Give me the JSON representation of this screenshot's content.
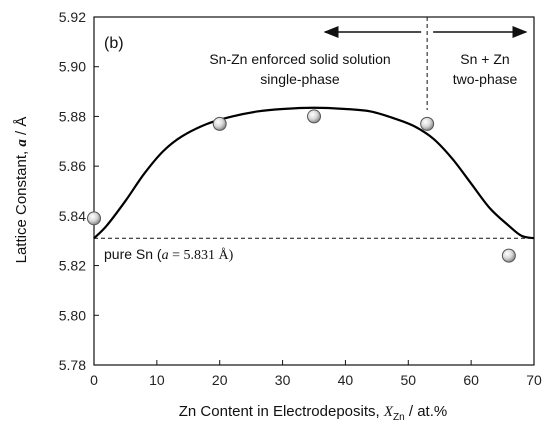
{
  "chart_data": {
    "type": "scatter",
    "panel_label": "(b)",
    "xlabel": {
      "prefix": "Zn Content in Electrodeposits, ",
      "var": "X",
      "sub": "Zn",
      "suffix": " / at.%"
    },
    "ylabel": {
      "prefix": "Lattice Constant, ",
      "var": "a",
      "suffix": " / Å"
    },
    "xlim": [
      0,
      70
    ],
    "ylim": [
      5.78,
      5.92
    ],
    "xticks": [
      0,
      10,
      20,
      30,
      40,
      50,
      60,
      70
    ],
    "yticks": [
      5.78,
      5.8,
      5.82,
      5.84,
      5.86,
      5.88,
      5.9,
      5.92
    ],
    "xtick_labels": [
      "0",
      "10",
      "20",
      "30",
      "40",
      "50",
      "60",
      "70"
    ],
    "ytick_labels": [
      "5.78",
      "5.80",
      "5.82",
      "5.84",
      "5.86",
      "5.88",
      "5.90",
      "5.92"
    ],
    "grid": false,
    "series": [
      {
        "points": [
          {
            "x": 0,
            "y": 5.839
          },
          {
            "x": 20,
            "y": 5.877
          },
          {
            "x": 35,
            "y": 5.88
          },
          {
            "x": 53,
            "y": 5.877
          },
          {
            "x": 66,
            "y": 5.824
          }
        ]
      }
    ],
    "fit_curve": [
      [
        0,
        5.831
      ],
      [
        2,
        5.836
      ],
      [
        5,
        5.846
      ],
      [
        8,
        5.857
      ],
      [
        11,
        5.866
      ],
      [
        14,
        5.872
      ],
      [
        18,
        5.877
      ],
      [
        22,
        5.88
      ],
      [
        26,
        5.882
      ],
      [
        30,
        5.883
      ],
      [
        35,
        5.8835
      ],
      [
        40,
        5.883
      ],
      [
        44,
        5.882
      ],
      [
        48,
        5.879
      ],
      [
        51,
        5.876
      ],
      [
        54,
        5.871
      ],
      [
        57,
        5.863
      ],
      [
        60,
        5.853
      ],
      [
        63,
        5.843
      ],
      [
        66,
        5.836
      ],
      [
        68,
        5.832
      ],
      [
        70,
        5.831
      ]
    ],
    "reference_line": {
      "y": 5.831,
      "label_prefix": "pure Sn (",
      "label_var": "a",
      "label_suffix": " = 5.831 Å)"
    },
    "phase_boundary_x": 53,
    "annotations": {
      "left_phase_line1": "Sn-Zn enforced solid solution",
      "left_phase_line2": "single-phase",
      "right_phase_line1": "Sn + Zn",
      "right_phase_line2": "two-phase"
    }
  }
}
